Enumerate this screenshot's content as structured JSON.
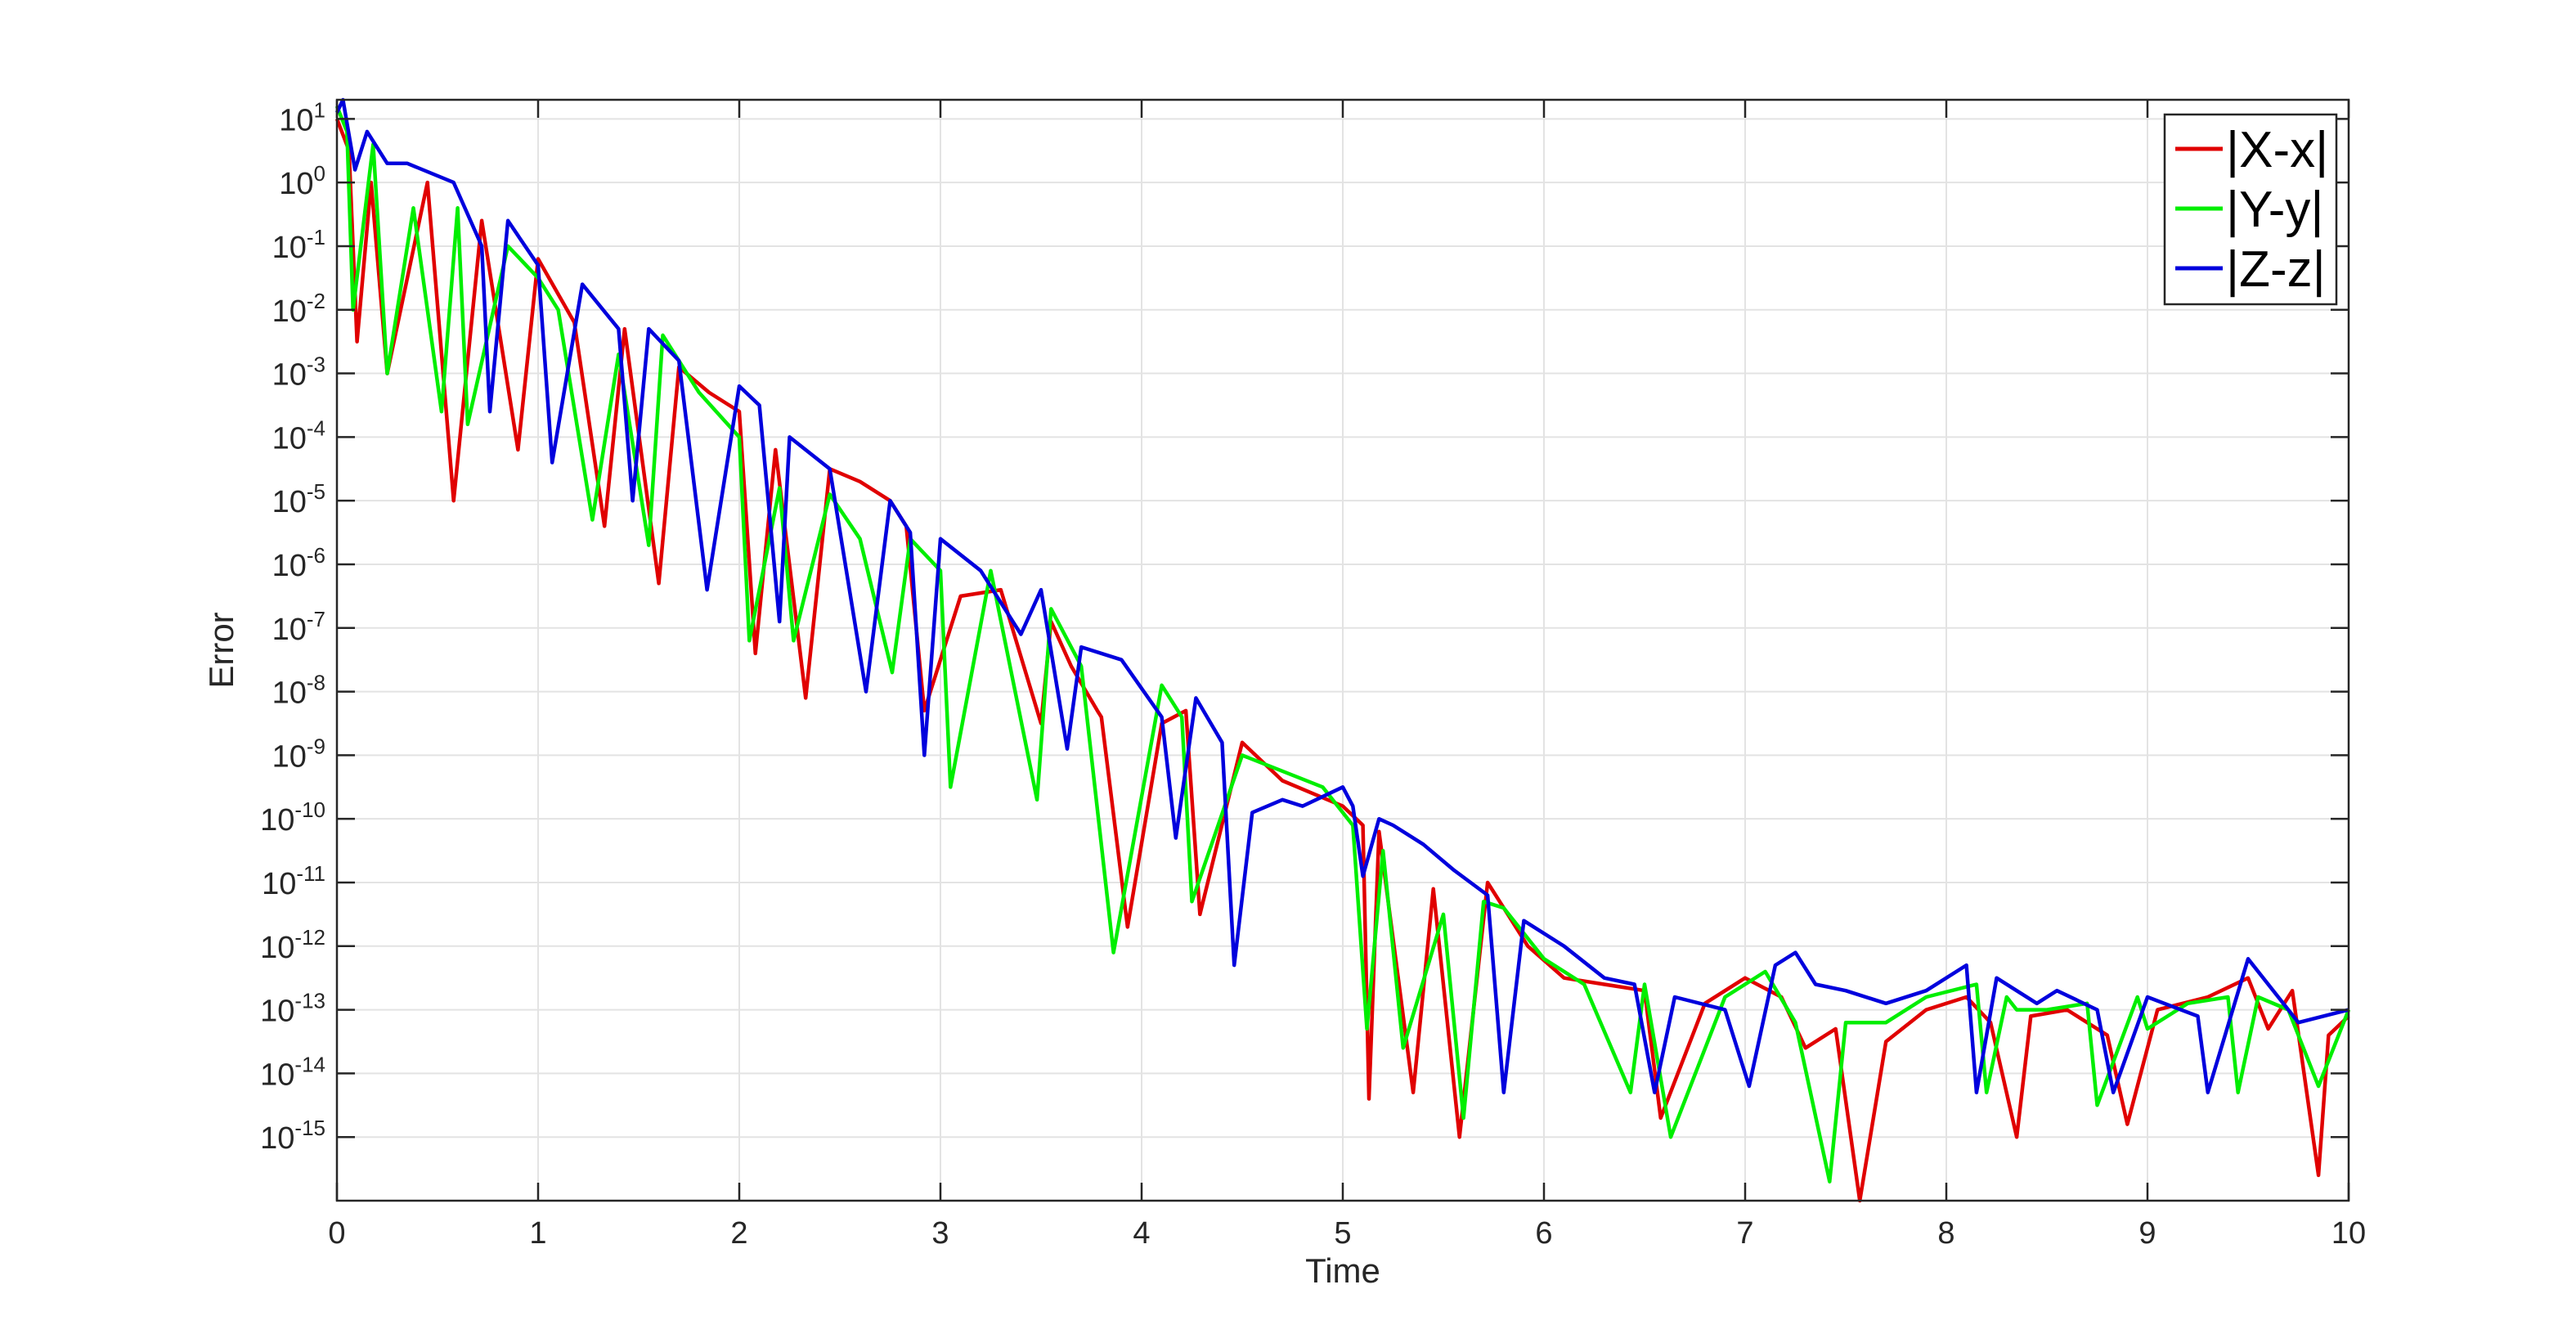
{
  "chart_data": {
    "type": "line",
    "title": "",
    "xlabel": "Time",
    "ylabel": "Error",
    "xlim": [
      0,
      10
    ],
    "ylim_log10": [
      -16,
      1.3
    ],
    "yscale": "log",
    "grid": true,
    "legend_position": "top-right",
    "x_ticks": [
      "0",
      "1",
      "2",
      "3",
      "4",
      "5",
      "6",
      "7",
      "8",
      "9",
      "10"
    ],
    "y_ticks": [
      {
        "base": "10",
        "exp": "1",
        "value": 1
      },
      {
        "base": "10",
        "exp": "0",
        "value": 0
      },
      {
        "base": "10",
        "exp": "-1",
        "value": -1
      },
      {
        "base": "10",
        "exp": "-2",
        "value": -2
      },
      {
        "base": "10",
        "exp": "-3",
        "value": -3
      },
      {
        "base": "10",
        "exp": "-4",
        "value": -4
      },
      {
        "base": "10",
        "exp": "-5",
        "value": -5
      },
      {
        "base": "10",
        "exp": "-6",
        "value": -6
      },
      {
        "base": "10",
        "exp": "-7",
        "value": -7
      },
      {
        "base": "10",
        "exp": "-8",
        "value": -8
      },
      {
        "base": "10",
        "exp": "-9",
        "value": -9
      },
      {
        "base": "10",
        "exp": "-10",
        "value": -10
      },
      {
        "base": "10",
        "exp": "-11",
        "value": -11
      },
      {
        "base": "10",
        "exp": "-12",
        "value": -12
      },
      {
        "base": "10",
        "exp": "-13",
        "value": -13
      },
      {
        "base": "10",
        "exp": "-14",
        "value": -14
      },
      {
        "base": "10",
        "exp": "-15",
        "value": -15
      }
    ],
    "series": [
      {
        "name": "|X-x|",
        "color": "#e00000",
        "x": [
          0.0,
          0.06,
          0.1,
          0.17,
          0.25,
          0.45,
          0.58,
          0.72,
          0.9,
          1.0,
          1.18,
          1.33,
          1.43,
          1.6,
          1.7,
          1.85,
          2.0,
          2.08,
          2.18,
          2.33,
          2.45,
          2.6,
          2.75,
          2.83,
          2.92,
          3.1,
          3.3,
          3.5,
          3.55,
          3.65,
          3.78,
          3.8,
          3.93,
          4.1,
          4.22,
          4.29,
          4.5,
          4.7,
          4.85,
          5.0,
          5.1,
          5.13,
          5.18,
          5.35,
          5.45,
          5.58,
          5.72,
          5.8,
          5.92,
          6.1,
          6.3,
          6.5,
          6.58,
          6.8,
          7.0,
          7.18,
          7.3,
          7.45,
          7.57,
          7.7,
          7.9,
          8.1,
          8.22,
          8.35,
          8.42,
          8.6,
          8.8,
          8.9,
          9.05,
          9.3,
          9.5,
          9.6,
          9.72,
          9.85,
          9.9,
          10.0
        ],
        "log10": [
          1.0,
          0.5,
          -2.5,
          0.0,
          -3.0,
          0.0,
          -5.0,
          -0.6,
          -4.2,
          -1.2,
          -2.2,
          -5.4,
          -2.3,
          -6.3,
          -2.9,
          -3.3,
          -3.6,
          -7.4,
          -4.2,
          -8.1,
          -4.5,
          -4.7,
          -5.0,
          -5.4,
          -8.3,
          -6.5,
          -6.4,
          -8.5,
          -6.9,
          -7.6,
          -8.3,
          -8.4,
          -11.7,
          -8.5,
          -8.3,
          -11.5,
          -8.8,
          -9.4,
          -9.6,
          -9.8,
          -10.1,
          -14.4,
          -10.2,
          -14.3,
          -11.1,
          -15.0,
          -11.0,
          -11.4,
          -12.0,
          -12.5,
          -12.6,
          -12.7,
          -14.7,
          -12.9,
          -12.5,
          -12.8,
          -13.6,
          -13.3,
          -16.0,
          -13.5,
          -13.0,
          -12.8,
          -13.2,
          -15.0,
          -13.1,
          -13.0,
          -13.4,
          -14.8,
          -13.0,
          -12.8,
          -12.5,
          -13.3,
          -12.7,
          -15.6,
          -13.4,
          -13.1
        ]
      },
      {
        "name": "|Y-y|",
        "color": "#00ee00",
        "x": [
          0.0,
          0.05,
          0.08,
          0.18,
          0.25,
          0.38,
          0.52,
          0.6,
          0.65,
          0.85,
          1.0,
          1.1,
          1.27,
          1.4,
          1.55,
          1.62,
          1.8,
          2.0,
          2.05,
          2.2,
          2.27,
          2.45,
          2.6,
          2.76,
          2.85,
          3.0,
          3.05,
          3.25,
          3.48,
          3.55,
          3.7,
          3.86,
          4.1,
          4.2,
          4.25,
          4.5,
          4.9,
          5.05,
          5.12,
          5.2,
          5.3,
          5.5,
          5.6,
          5.7,
          5.8,
          6.0,
          6.2,
          6.43,
          6.5,
          6.63,
          6.9,
          7.1,
          7.25,
          7.42,
          7.5,
          7.7,
          7.9,
          8.15,
          8.2,
          8.3,
          8.35,
          8.5,
          8.7,
          8.75,
          8.95,
          9.0,
          9.2,
          9.4,
          9.45,
          9.55,
          9.7,
          9.85,
          10.0
        ],
        "log10": [
          1.2,
          0.8,
          -2.0,
          0.6,
          -3.0,
          -0.4,
          -3.6,
          -0.4,
          -3.8,
          -1.0,
          -1.5,
          -2.0,
          -5.3,
          -2.7,
          -5.7,
          -2.4,
          -3.3,
          -4.0,
          -7.2,
          -4.8,
          -7.2,
          -4.9,
          -5.6,
          -7.7,
          -5.6,
          -6.1,
          -9.5,
          -6.1,
          -9.7,
          -6.7,
          -7.6,
          -12.1,
          -7.9,
          -8.4,
          -11.3,
          -9.0,
          -9.5,
          -10.1,
          -13.3,
          -10.5,
          -13.6,
          -11.5,
          -14.7,
          -11.3,
          -11.4,
          -12.2,
          -12.6,
          -14.3,
          -12.6,
          -15.0,
          -12.8,
          -12.4,
          -13.2,
          -15.7,
          -13.2,
          -13.2,
          -12.8,
          -12.6,
          -14.3,
          -12.8,
          -13.0,
          -13.0,
          -12.9,
          -14.5,
          -12.8,
          -13.3,
          -12.9,
          -12.8,
          -14.3,
          -12.8,
          -13.0,
          -14.2,
          -13.0
        ]
      },
      {
        "name": "|Z-z|",
        "color": "#0000dd",
        "x": [
          0.0,
          0.03,
          0.09,
          0.15,
          0.25,
          0.35,
          0.58,
          0.72,
          0.76,
          0.85,
          1.0,
          1.07,
          1.22,
          1.4,
          1.47,
          1.55,
          1.7,
          1.84,
          2.0,
          2.1,
          2.2,
          2.25,
          2.45,
          2.63,
          2.75,
          2.85,
          2.92,
          3.0,
          3.2,
          3.4,
          3.5,
          3.63,
          3.7,
          3.9,
          4.1,
          4.17,
          4.27,
          4.4,
          4.46,
          4.55,
          4.7,
          4.8,
          5.0,
          5.05,
          5.1,
          5.18,
          5.25,
          5.4,
          5.55,
          5.72,
          5.8,
          5.9,
          6.1,
          6.3,
          6.45,
          6.55,
          6.65,
          6.9,
          7.02,
          7.15,
          7.25,
          7.35,
          7.5,
          7.7,
          7.9,
          8.1,
          8.15,
          8.25,
          8.45,
          8.55,
          8.75,
          8.83,
          9.0,
          9.25,
          9.3,
          9.5,
          9.65,
          9.75,
          10.0
        ],
        "log10": [
          1.1,
          1.3,
          0.2,
          0.8,
          0.3,
          0.3,
          0.0,
          -1.0,
          -3.6,
          -0.6,
          -1.3,
          -4.4,
          -1.6,
          -2.3,
          -5.0,
          -2.3,
          -2.8,
          -6.4,
          -3.2,
          -3.5,
          -6.9,
          -4.0,
          -4.5,
          -8.0,
          -5.0,
          -5.5,
          -9.0,
          -5.6,
          -6.1,
          -7.1,
          -6.4,
          -8.9,
          -7.3,
          -7.5,
          -8.4,
          -10.3,
          -8.1,
          -8.8,
          -12.3,
          -9.9,
          -9.7,
          -9.8,
          -9.5,
          -9.8,
          -10.9,
          -10.0,
          -10.1,
          -10.4,
          -10.8,
          -11.2,
          -14.3,
          -11.6,
          -12.0,
          -12.5,
          -12.6,
          -14.3,
          -12.8,
          -13.0,
          -14.2,
          -12.3,
          -12.1,
          -12.6,
          -12.7,
          -12.9,
          -12.7,
          -12.3,
          -14.3,
          -12.5,
          -12.9,
          -12.7,
          -13.0,
          -14.3,
          -12.8,
          -13.1,
          -14.3,
          -12.2,
          -12.8,
          -13.2,
          -13.0
        ]
      }
    ]
  }
}
